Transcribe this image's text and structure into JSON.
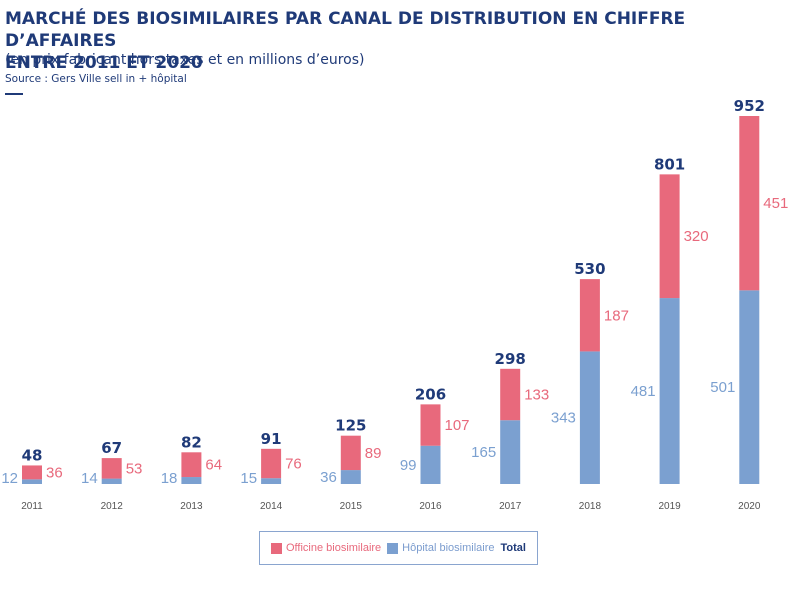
{
  "header": {
    "title_line1": "MARCHÉ DES BIOSIMILAIRES PAR CANAL DE DISTRIBUTION EN CHIFFRE D’AFFAIRES",
    "title_line2": "ENTRE 2011 ET 2020",
    "subtitle": "(en prix fabricant hors taxes et en millions d’euros)",
    "source": "Source : Gers Ville sell in + hôpital"
  },
  "colors": {
    "officine": "#e8697c",
    "hopital": "#7ba0d0",
    "total": "#1f3a78",
    "axis_label": "#555555"
  },
  "chart_data": {
    "type": "bar",
    "stacked": true,
    "categories": [
      "2011",
      "2012",
      "2013",
      "2014",
      "2015",
      "2016",
      "2017",
      "2018",
      "2019",
      "2020"
    ],
    "series": [
      {
        "name": "Hôpital biosimilaire",
        "values": [
          12,
          14,
          18,
          15,
          36,
          99,
          165,
          343,
          481,
          501
        ]
      },
      {
        "name": "Officine biosimilaire",
        "values": [
          36,
          53,
          64,
          76,
          89,
          107,
          133,
          187,
          320,
          451
        ]
      }
    ],
    "totals": [
      48,
      67,
      82,
      91,
      125,
      206,
      298,
      530,
      801,
      952
    ],
    "title": "MARCHÉ DES BIOSIMILAIRES PAR CANAL DE DISTRIBUTION EN CHIFFRE D’AFFAIRES ENTRE 2011 ET 2020",
    "xlabel": "",
    "ylabel": "",
    "ylim": [
      0,
      952
    ],
    "grid": false,
    "legend_position": "bottom"
  },
  "legend": {
    "officine": "Officine biosimilaire",
    "hopital": "Hôpital biosimilaire",
    "total": "Total"
  }
}
